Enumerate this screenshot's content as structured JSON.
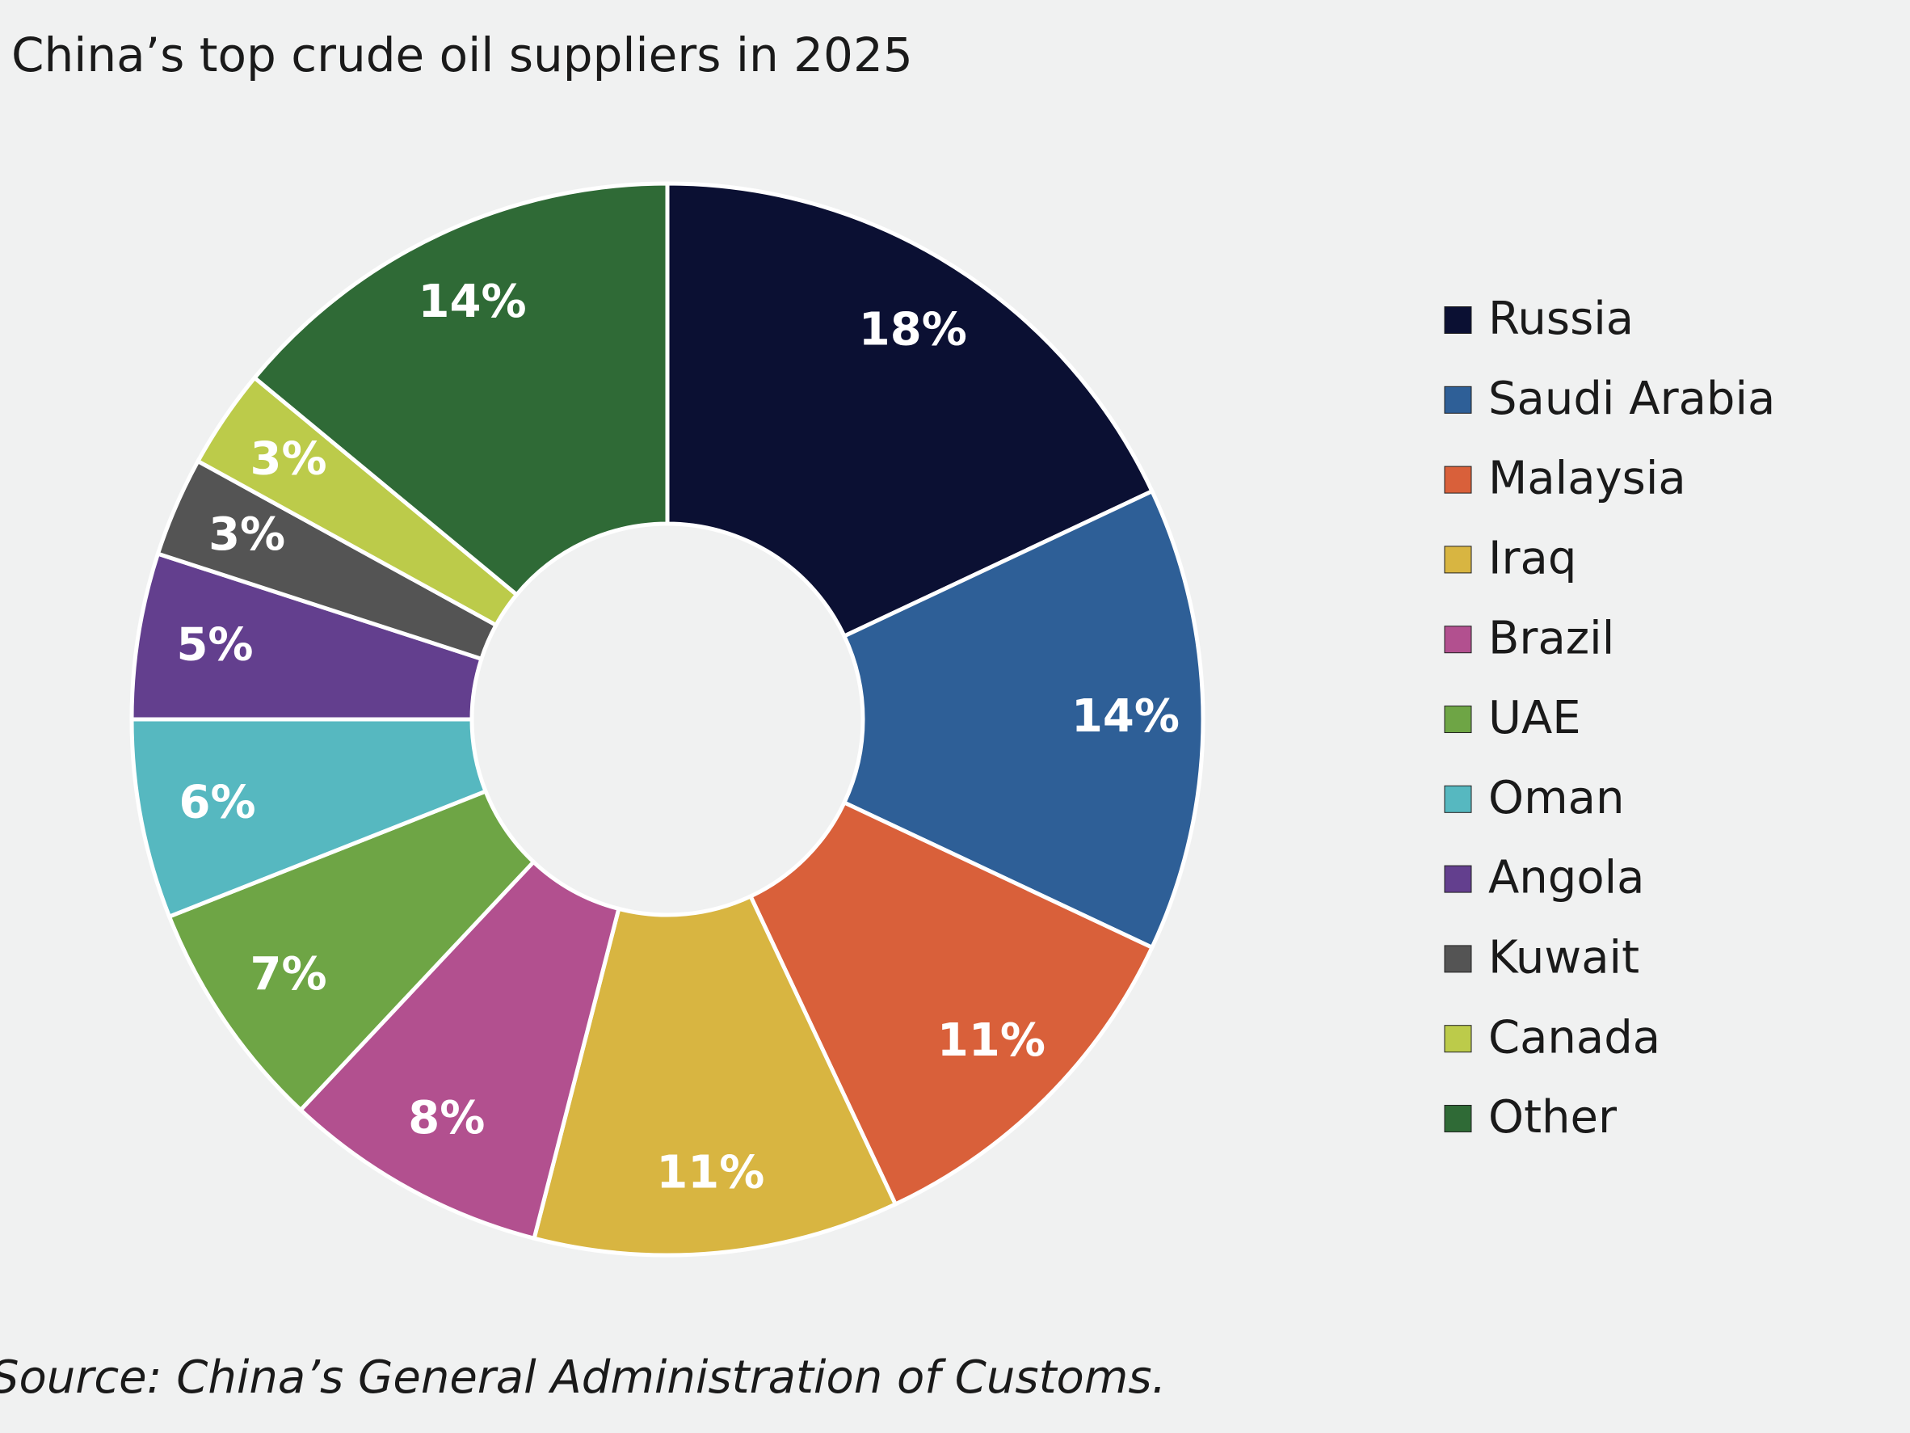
{
  "chart_data": {
    "type": "donut",
    "title": "China’s top crude oil suppliers in 2025",
    "source": "Source: China’s General Administration of Customs.",
    "categories": [
      "Russia",
      "Saudi Arabia",
      "Malaysia",
      "Iraq",
      "Brazil",
      "UAE",
      "Oman",
      "Angola",
      "Kuwait",
      "Canada",
      "Other"
    ],
    "values": [
      18,
      14,
      11,
      11,
      8,
      7,
      6,
      5,
      3,
      3,
      14
    ],
    "value_labels": [
      "18%",
      "14%",
      "11%",
      "11%",
      "8%",
      "7%",
      "6%",
      "5%",
      "3%",
      "3%",
      "14%"
    ],
    "colors": [
      "#0b1033",
      "#2e5f97",
      "#d9603a",
      "#d8b541",
      "#b2508f",
      "#6ea545",
      "#56b8c0",
      "#633f8e",
      "#545454",
      "#bccb4a",
      "#2f6a36"
    ],
    "legend": "right"
  }
}
